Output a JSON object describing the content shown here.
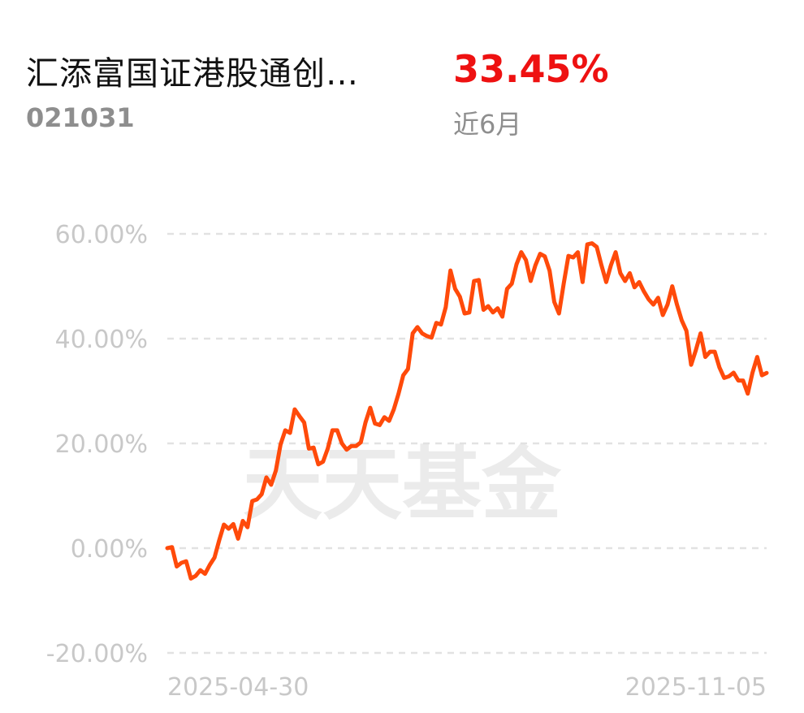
{
  "header": {
    "fund_name": "汇添富国证港股通创…",
    "fund_code": "021031",
    "return_value": "33.45%",
    "return_period": "近6月"
  },
  "watermark": "天天基金",
  "colors": {
    "line": "#ff4a0a",
    "return": "#ee1111",
    "grid": "#e2e2e2",
    "labels": "#c8c8c8"
  },
  "chart_data": {
    "type": "line",
    "title": "",
    "xlabel": "",
    "ylabel": "",
    "ylim": [
      -20,
      60
    ],
    "yticks": [
      "60.00%",
      "40.00%",
      "20.00%",
      "0.00%",
      "-20.00%"
    ],
    "ytick_values": [
      60,
      40,
      20,
      0,
      -20
    ],
    "xticks": [
      "2025-04-30",
      "2025-11-05"
    ],
    "grid": true,
    "series": [
      {
        "values": [
          0,
          0.2,
          -3.5,
          -2.8,
          -2.5,
          -5.8,
          -5.3,
          -4.2,
          -4.9,
          -3.2,
          -1.8,
          1.5,
          4.5,
          3.7,
          4.6,
          1.8,
          5.2,
          4.0,
          9.0,
          9.3,
          10.3,
          13.5,
          12.1,
          14.8,
          19.8,
          22.5,
          22.0,
          26.5,
          25.2,
          24.0,
          19.0,
          19.2,
          16.0,
          16.5,
          19.0,
          22.5,
          22.5,
          20.0,
          18.8,
          19.5,
          19.5,
          20.2,
          24.0,
          26.8,
          23.8,
          23.5,
          25.0,
          24.3,
          26.5,
          29.5,
          33.0,
          34.2,
          41.0,
          42.2,
          41.0,
          40.5,
          40.2,
          43.0,
          42.7,
          46.0,
          53.0,
          49.5,
          48.0,
          44.8,
          45.0,
          51.0,
          51.2,
          45.5,
          46.2,
          45.0,
          45.8,
          44.2,
          49.5,
          50.5,
          54.2,
          56.5,
          55.0,
          51.0,
          54.0,
          56.2,
          55.7,
          53.0,
          47.0,
          44.8,
          50.5,
          55.8,
          55.5,
          56.5,
          50.8,
          58.0,
          58.2,
          57.5,
          54.0,
          50.8,
          54.0,
          56.5,
          52.5,
          51.0,
          52.5,
          49.8,
          50.8,
          49.0,
          47.5,
          46.5,
          47.8,
          44.5,
          46.5,
          50.0,
          46.5,
          43.5,
          41.5,
          35.0,
          37.8,
          41.0,
          36.5,
          37.5,
          37.5,
          34.5,
          32.5,
          32.8,
          33.5,
          32.0,
          32.0,
          29.5,
          33.5,
          36.5,
          33.0,
          33.45
        ]
      }
    ]
  }
}
